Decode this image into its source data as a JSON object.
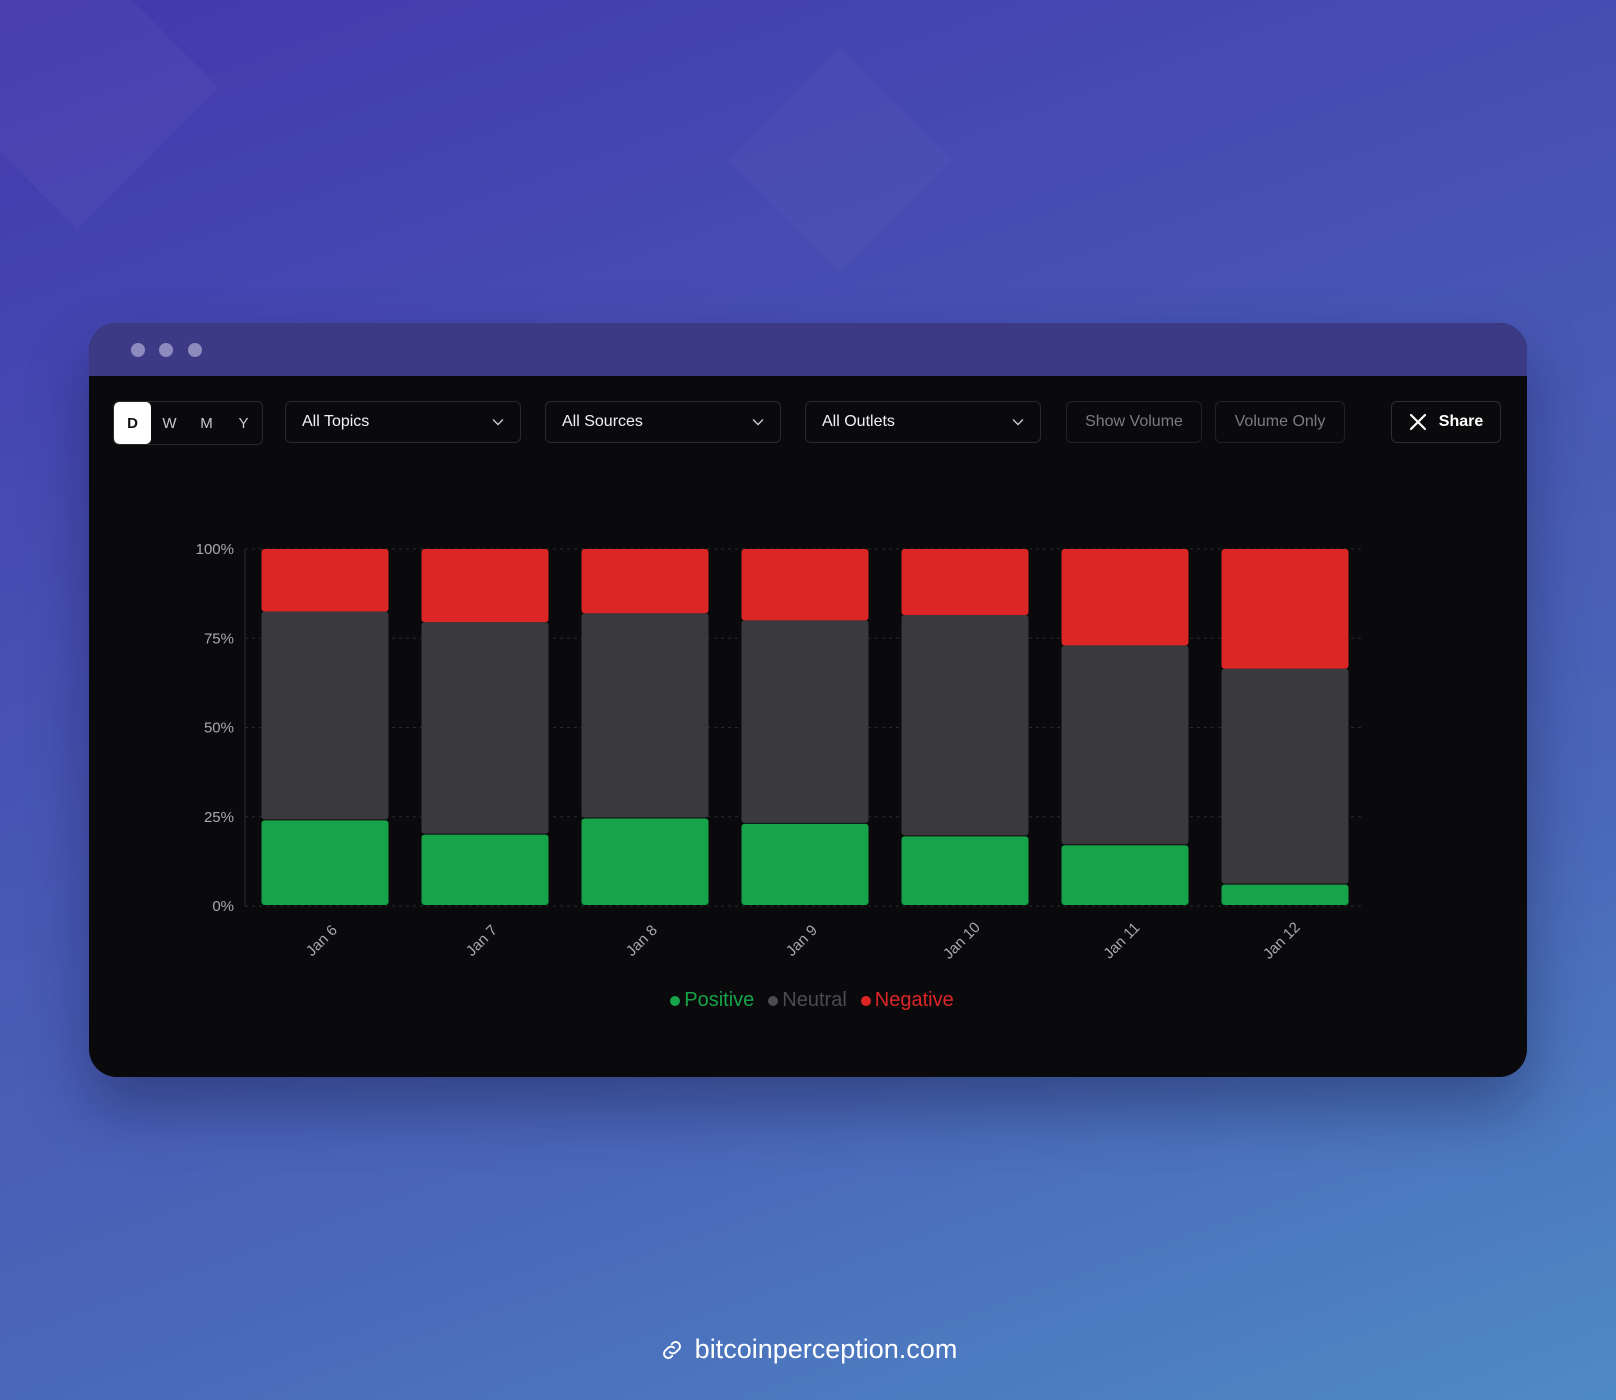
{
  "periods": [
    "D",
    "W",
    "M",
    "Y"
  ],
  "active_period": "D",
  "filters": {
    "topics": "All Topics",
    "sources": "All Sources",
    "outlets": "All Outlets"
  },
  "toggles": {
    "show_volume": "Show Volume",
    "volume_only": "Volume Only"
  },
  "share_label": "Share",
  "footer": {
    "url": "bitcoinperception.com",
    "icon": "link-icon"
  },
  "colors": {
    "positive": "#17a34a",
    "neutral": "#3a3a3e",
    "negative": "#dc2626",
    "neutral_label": "#4b4b52"
  },
  "chart_data": {
    "type": "bar",
    "stacked": true,
    "categories": [
      "Jan 6",
      "Jan 7",
      "Jan 8",
      "Jan 9",
      "Jan 10",
      "Jan 11",
      "Jan 12"
    ],
    "series": [
      {
        "name": "Positive",
        "values": [
          24,
          20,
          24.5,
          23,
          19.5,
          17,
          6
        ]
      },
      {
        "name": "Neutral",
        "values": [
          58.5,
          59.5,
          57.5,
          57,
          62,
          56,
          60.5
        ]
      },
      {
        "name": "Negative",
        "values": [
          17.5,
          20.5,
          18,
          20,
          18.5,
          27,
          33.5
        ]
      }
    ],
    "yticks": [
      "0%",
      "25%",
      "50%",
      "75%",
      "100%"
    ],
    "ylim": [
      0,
      100
    ],
    "grid": true,
    "legend_position": "bottom-center"
  }
}
